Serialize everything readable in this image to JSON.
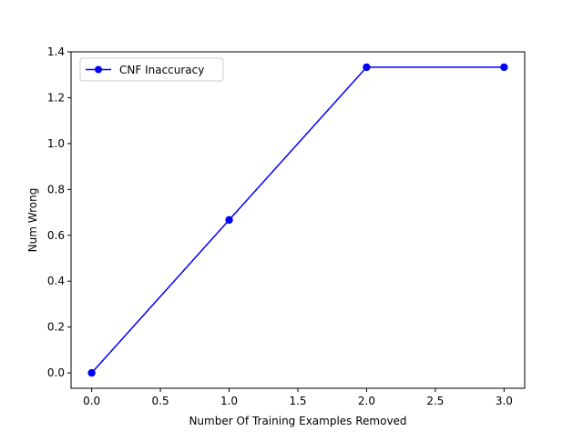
{
  "chart_data": {
    "type": "line",
    "title": "",
    "xlabel": "Number Of Training Examples Removed",
    "ylabel": "Num Wrong",
    "xlim": [
      -0.15,
      3.15
    ],
    "ylim": [
      -0.067,
      1.4
    ],
    "x_ticks": [
      0.0,
      0.5,
      1.0,
      1.5,
      2.0,
      2.5,
      3.0
    ],
    "x_tick_labels": [
      "0.0",
      "0.5",
      "1.0",
      "1.5",
      "2.0",
      "2.5",
      "3.0"
    ],
    "y_ticks": [
      0.0,
      0.2,
      0.4,
      0.6,
      0.8,
      1.0,
      1.2,
      1.4
    ],
    "y_tick_labels": [
      "0.0",
      "0.2",
      "0.4",
      "0.6",
      "0.8",
      "1.0",
      "1.2",
      "1.4"
    ],
    "grid": false,
    "legend_position": "top-left",
    "series": [
      {
        "name": "CNF Inaccuracy",
        "color": "#0000ff",
        "marker": "circle",
        "x": [
          0,
          1,
          2,
          3
        ],
        "y": [
          0.0,
          0.667,
          1.333,
          1.333
        ]
      }
    ]
  }
}
